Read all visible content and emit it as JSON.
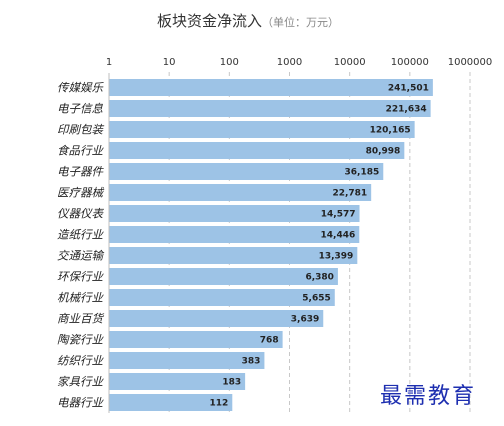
{
  "chart_data": {
    "type": "bar",
    "orientation": "horizontal",
    "title": "板块资金净流入",
    "subtitle": "（单位：万元）",
    "x_scale": "log",
    "xlim": [
      1,
      1000000
    ],
    "x_ticks": [
      "1",
      "10",
      "100",
      "1000",
      "10000",
      "100000",
      "1000000"
    ],
    "grid": true,
    "bar_color": "#9dc3e6",
    "categories": [
      "传媒娱乐",
      "电子信息",
      "印刷包装",
      "食品行业",
      "电子器件",
      "医疗器械",
      "仪器仪表",
      "造纸行业",
      "交通运输",
      "环保行业",
      "机械行业",
      "商业百货",
      "陶瓷行业",
      "纺织行业",
      "家具行业",
      "电器行业"
    ],
    "values": [
      241501,
      221634,
      120165,
      80998,
      36185,
      22781,
      14577,
      14446,
      13399,
      6380,
      5655,
      3639,
      768,
      383,
      183,
      112
    ],
    "data_labels": [
      "241,501",
      "221,634",
      "120,165",
      "80,998",
      "36,185",
      "22,781",
      "14,577",
      "14,446",
      "13,399",
      "6,380",
      "5,655",
      "3,639",
      "768",
      "383",
      "183",
      "112"
    ]
  },
  "watermark": "最需教育"
}
